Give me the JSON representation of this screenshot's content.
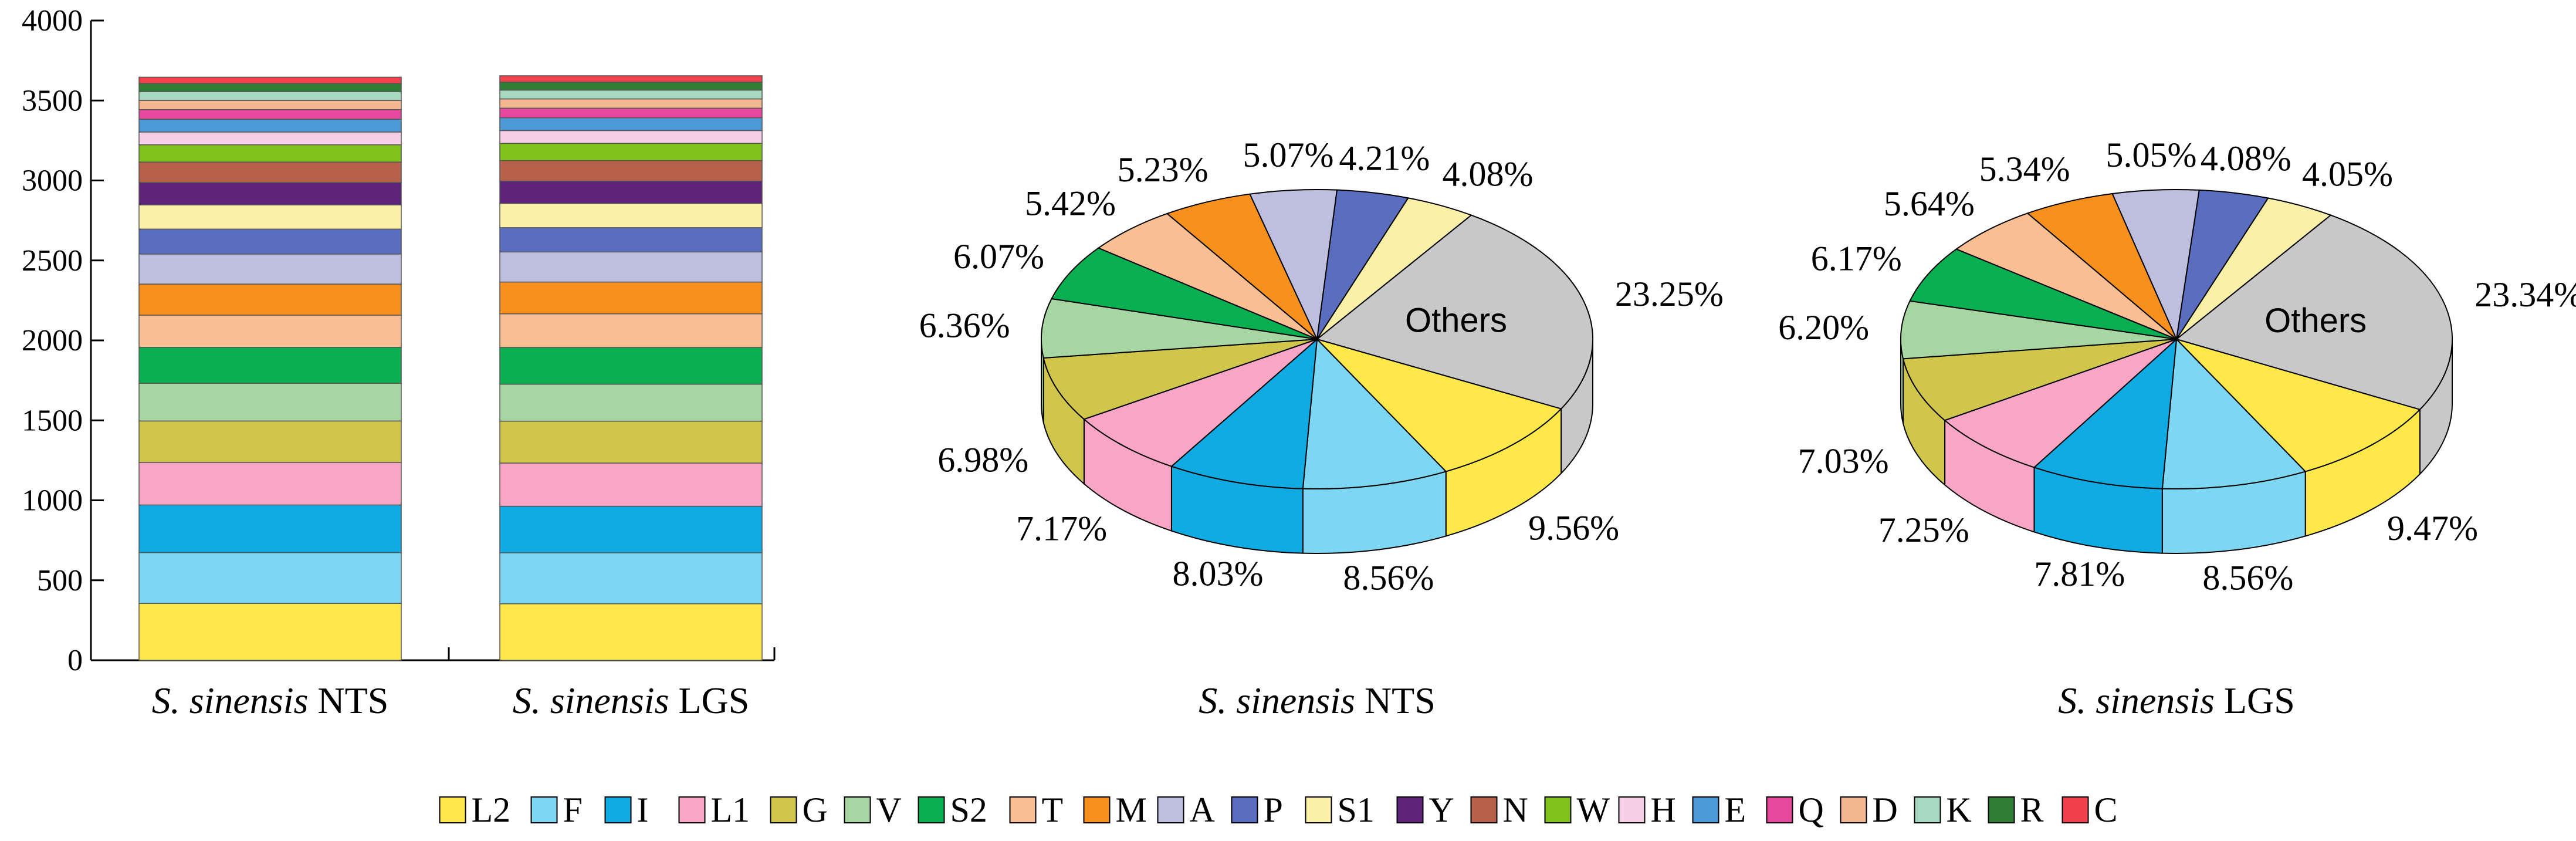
{
  "chart_data": [
    {
      "type": "bar",
      "stacked": true,
      "title": "",
      "xlabel": "",
      "ylabel": "",
      "ylim": [
        0,
        4000
      ],
      "yticks": [
        0,
        500,
        1000,
        1500,
        2000,
        2500,
        3000,
        3500,
        4000
      ],
      "categories": [
        {
          "species": "S. sinensis",
          "suffix": "NTS"
        },
        {
          "species": "S. sinensis",
          "suffix": "LGS"
        }
      ],
      "series": [
        {
          "name": "L2",
          "values": [
            355,
            353
          ]
        },
        {
          "name": "F",
          "values": [
            318,
            319
          ]
        },
        {
          "name": "I",
          "values": [
            298,
            291
          ]
        },
        {
          "name": "L1",
          "values": [
            266,
            270
          ]
        },
        {
          "name": "G",
          "values": [
            259,
            262
          ]
        },
        {
          "name": "V",
          "values": [
            236,
            231
          ]
        },
        {
          "name": "S2",
          "values": [
            225,
            230
          ]
        },
        {
          "name": "T",
          "values": [
            201,
            210
          ]
        },
        {
          "name": "M",
          "values": [
            194,
            199
          ]
        },
        {
          "name": "A",
          "values": [
            188,
            188
          ]
        },
        {
          "name": "P",
          "values": [
            156,
            152
          ]
        },
        {
          "name": "S1",
          "values": [
            151,
            151
          ]
        },
        {
          "name": "Y",
          "values": [
            140,
            140
          ]
        },
        {
          "name": "N",
          "values": [
            128,
            128
          ]
        },
        {
          "name": "W",
          "values": [
            108,
            108
          ]
        },
        {
          "name": "H",
          "values": [
            80,
            80
          ]
        },
        {
          "name": "E",
          "values": [
            80,
            80
          ]
        },
        {
          "name": "Q",
          "values": [
            60,
            60
          ]
        },
        {
          "name": "D",
          "values": [
            58,
            58
          ]
        },
        {
          "name": "K",
          "values": [
            55,
            55
          ]
        },
        {
          "name": "R",
          "values": [
            50,
            50
          ]
        },
        {
          "name": "C",
          "values": [
            40,
            40
          ]
        }
      ]
    },
    {
      "type": "pie",
      "caption": {
        "species": "S. sinensis",
        "suffix": "NTS"
      },
      "others_label": "Others",
      "slices": [
        {
          "name": "Others",
          "value": 23.25,
          "label": "23.25%"
        },
        {
          "name": "L2",
          "value": 9.56,
          "label": "9.56%"
        },
        {
          "name": "F",
          "value": 8.56,
          "label": "8.56%"
        },
        {
          "name": "I",
          "value": 8.03,
          "label": "8.03%"
        },
        {
          "name": "L1",
          "value": 7.17,
          "label": "7.17%"
        },
        {
          "name": "G",
          "value": 6.98,
          "label": "6.98%"
        },
        {
          "name": "V",
          "value": 6.36,
          "label": "6.36%"
        },
        {
          "name": "S2",
          "value": 6.07,
          "label": "6.07%"
        },
        {
          "name": "T",
          "value": 5.42,
          "label": "5.42%"
        },
        {
          "name": "M",
          "value": 5.23,
          "label": "5.23%"
        },
        {
          "name": "A",
          "value": 5.07,
          "label": "5.07%"
        },
        {
          "name": "P",
          "value": 4.21,
          "label": "4.21%"
        },
        {
          "name": "S1",
          "value": 4.08,
          "label": "4.08%"
        }
      ]
    },
    {
      "type": "pie",
      "caption": {
        "species": "S. sinensis",
        "suffix": "LGS"
      },
      "others_label": "Others",
      "slices": [
        {
          "name": "Others",
          "value": 23.34,
          "label": "23.34%"
        },
        {
          "name": "L2",
          "value": 9.47,
          "label": "9.47%"
        },
        {
          "name": "F",
          "value": 8.56,
          "label": "8.56%"
        },
        {
          "name": "I",
          "value": 7.81,
          "label": "7.81%"
        },
        {
          "name": "L1",
          "value": 7.25,
          "label": "7.25%"
        },
        {
          "name": "G",
          "value": 7.03,
          "label": "7.03%"
        },
        {
          "name": "V",
          "value": 6.2,
          "label": "6.20%"
        },
        {
          "name": "S2",
          "value": 6.17,
          "label": "6.17%"
        },
        {
          "name": "T",
          "value": 5.64,
          "label": "5.64%"
        },
        {
          "name": "M",
          "value": 5.34,
          "label": "5.34%"
        },
        {
          "name": "A",
          "value": 5.05,
          "label": "5.05%"
        },
        {
          "name": "P",
          "value": 4.08,
          "label": "4.08%"
        },
        {
          "name": "S1",
          "value": 4.05,
          "label": "4.05%"
        }
      ]
    }
  ],
  "legend": {
    "position": "bottom",
    "items": [
      {
        "name": "L2",
        "color": "#FFE84A"
      },
      {
        "name": "F",
        "color": "#7DD6F2"
      },
      {
        "name": "I",
        "color": "#10ABE3"
      },
      {
        "name": "L1",
        "color": "#F9A6C6"
      },
      {
        "name": "G",
        "color": "#D0C64C"
      },
      {
        "name": "V",
        "color": "#A8D6A2"
      },
      {
        "name": "S2",
        "color": "#0AAF52"
      },
      {
        "name": "T",
        "color": "#F9BE92"
      },
      {
        "name": "M",
        "color": "#F8901E"
      },
      {
        "name": "A",
        "color": "#BEBEDE"
      },
      {
        "name": "P",
        "color": "#5B6DBE"
      },
      {
        "name": "S1",
        "color": "#FBF0A8"
      },
      {
        "name": "Y",
        "color": "#5E2479"
      },
      {
        "name": "N",
        "color": "#B8614A"
      },
      {
        "name": "W",
        "color": "#7FC21C"
      },
      {
        "name": "H",
        "color": "#F4CFE7"
      },
      {
        "name": "E",
        "color": "#4C99D6"
      },
      {
        "name": "Q",
        "color": "#E5489C"
      },
      {
        "name": "D",
        "color": "#F4B591"
      },
      {
        "name": "K",
        "color": "#A7D9C0"
      },
      {
        "name": "R",
        "color": "#2F7E36"
      },
      {
        "name": "C",
        "color": "#F0414C"
      }
    ]
  },
  "colors": {
    "others": "#C8C8C8"
  }
}
